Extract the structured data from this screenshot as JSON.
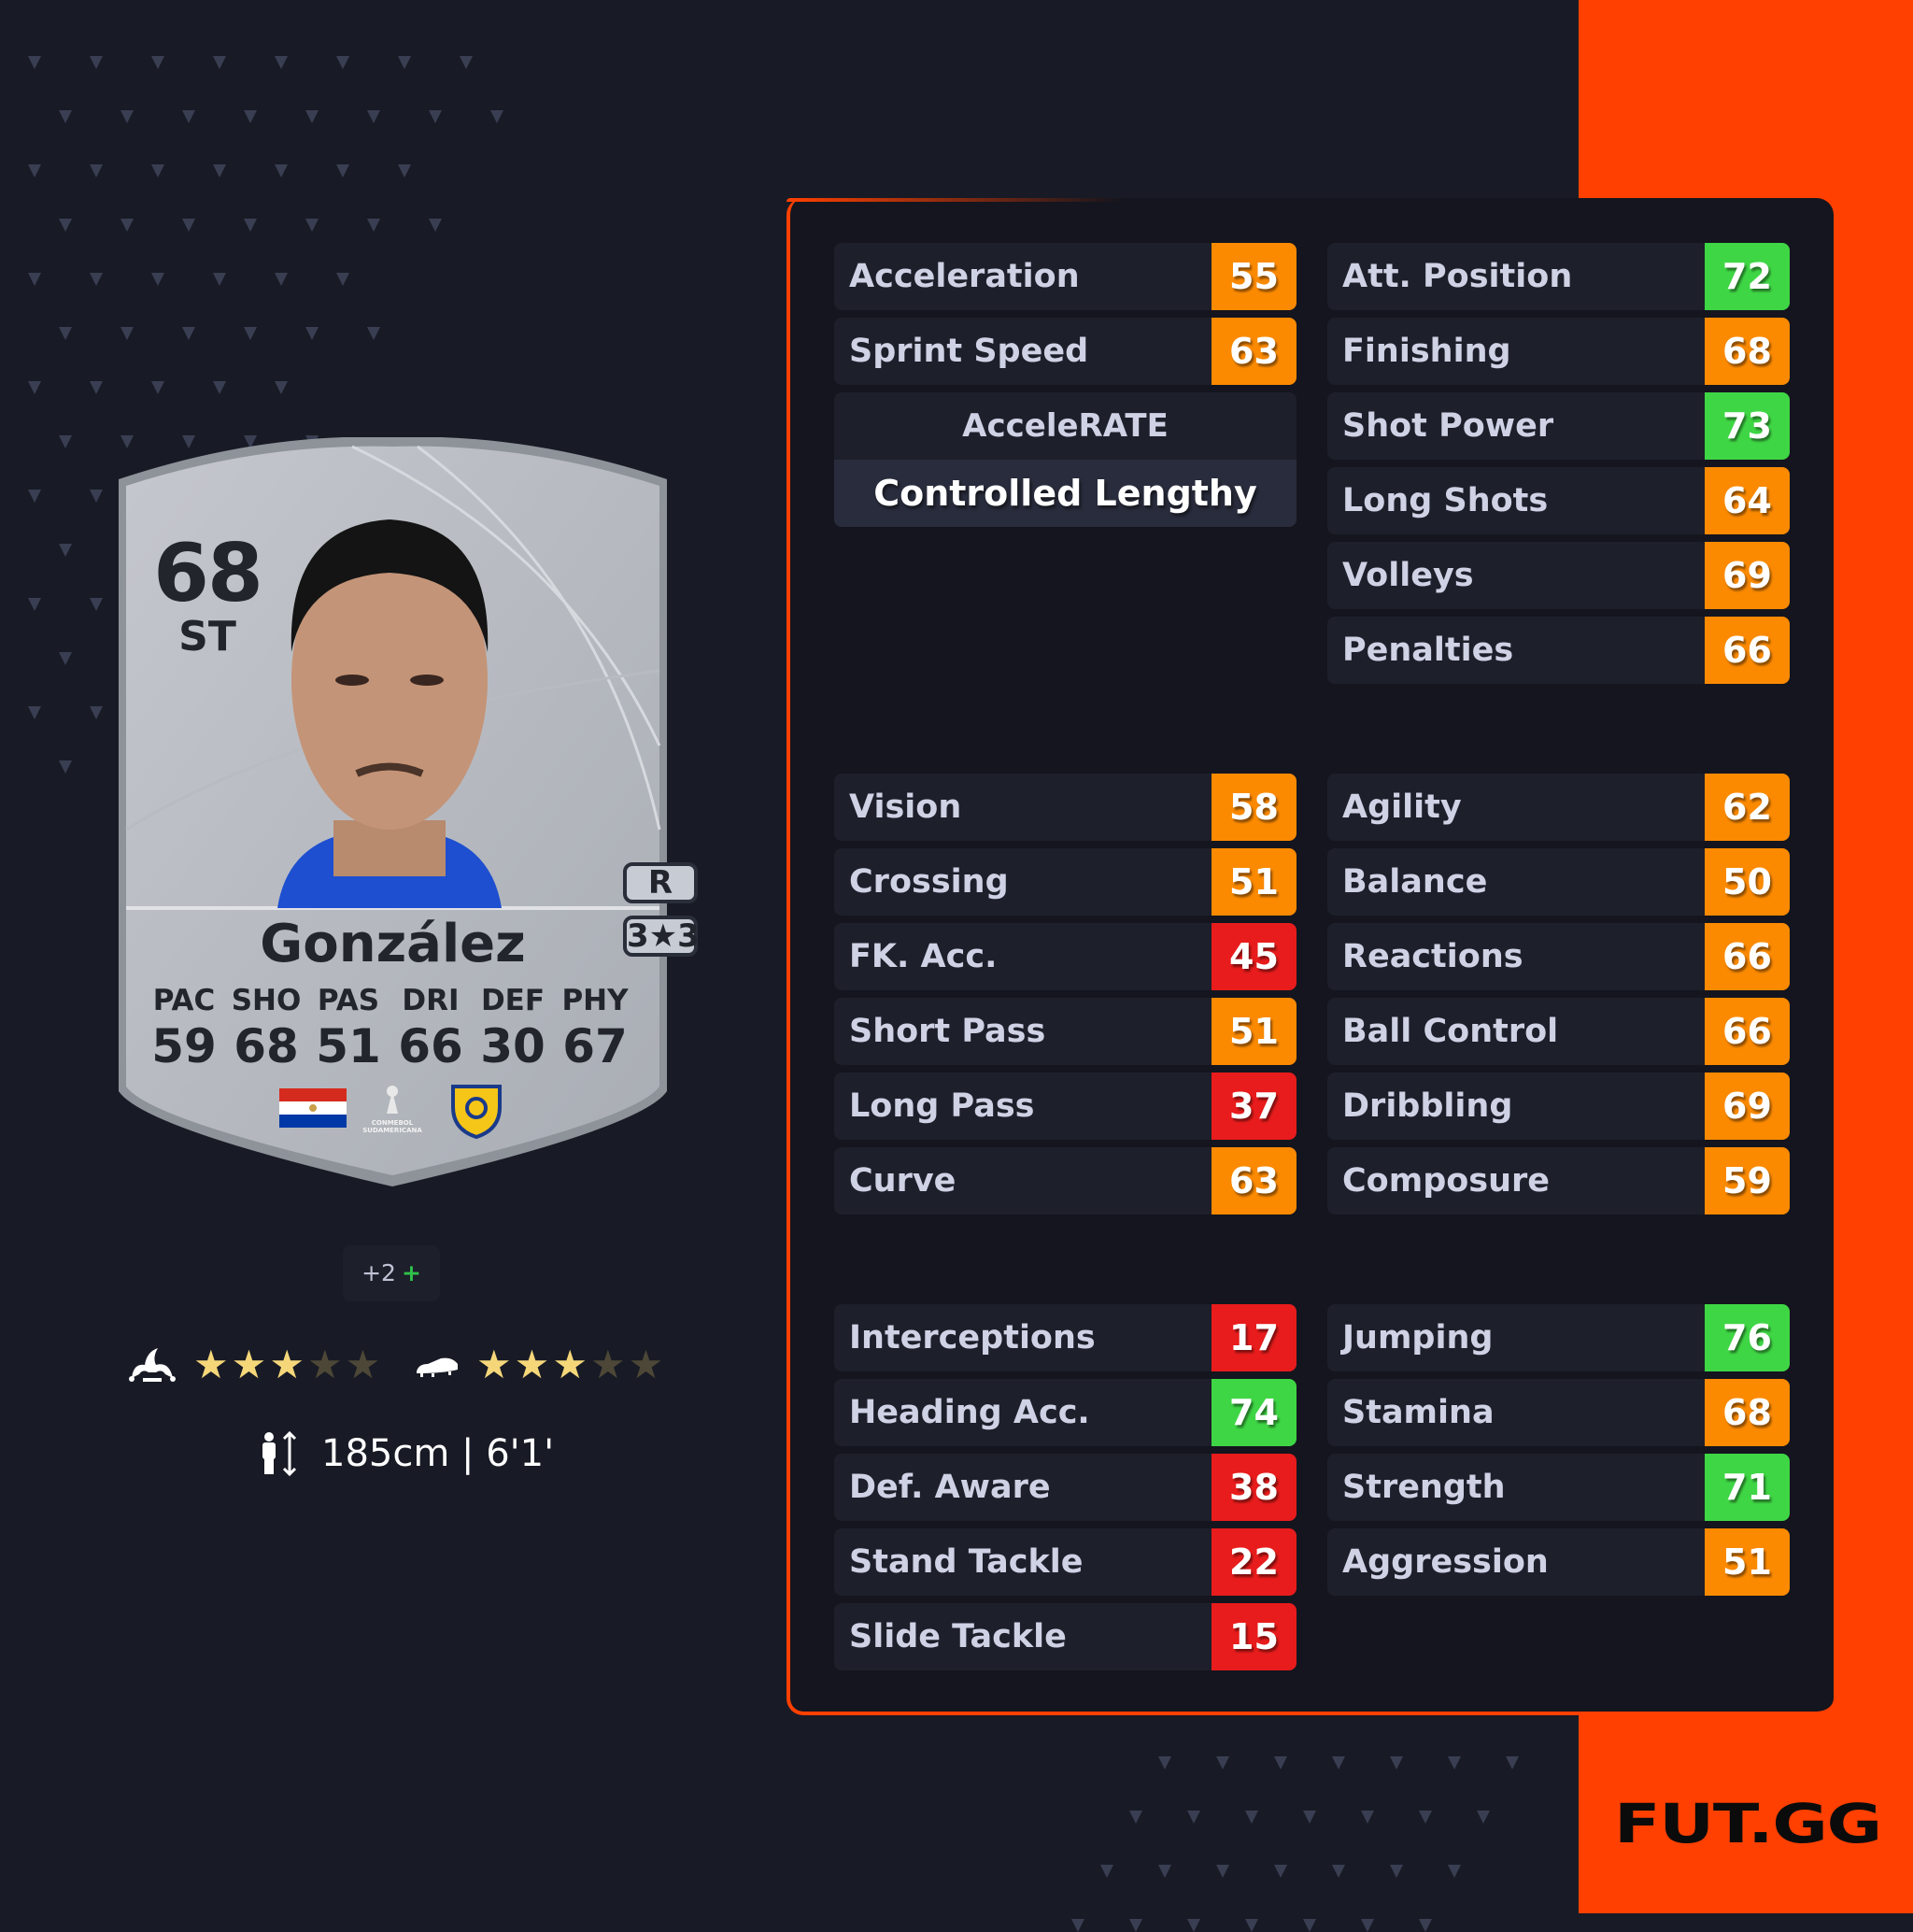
{
  "colors": {
    "brand": "#ff4000",
    "high": "#3fd645",
    "mid": "#fb8a00",
    "low": "#e81c1c"
  },
  "card": {
    "rating": "68",
    "position": "ST",
    "name": "González",
    "foot": "R",
    "skill_weak": "3★3",
    "skill_weak_parts": {
      "skill": "3",
      "weak": "3"
    },
    "stats": [
      {
        "k": "PAC",
        "v": "59"
      },
      {
        "k": "SHO",
        "v": "68"
      },
      {
        "k": "PAS",
        "v": "51"
      },
      {
        "k": "DRI",
        "v": "66"
      },
      {
        "k": "DEF",
        "v": "30"
      },
      {
        "k": "PHY",
        "v": "67"
      }
    ],
    "nation": "Paraguay-flag",
    "league": "CONMEBOL SUDAMERICANA",
    "club": "club-crest"
  },
  "chemistry": {
    "text": "+2",
    "plus": "+"
  },
  "skill_moves": {
    "icon": "jester-hat-icon",
    "stars": 3,
    "max": 5
  },
  "weak_foot": {
    "icon": "boot-icon",
    "stars": 3,
    "max": 5
  },
  "height": {
    "text": "185cm | 6'1'"
  },
  "playstyle": {
    "accelerate_label": "AcceleRATE",
    "accelerate_value": "Controlled Lengthy"
  },
  "attributes": {
    "pace": [
      {
        "label": "Acceleration",
        "value": 55,
        "level": "mid"
      },
      {
        "label": "Sprint Speed",
        "value": 63,
        "level": "mid"
      }
    ],
    "shooting": [
      {
        "label": "Att. Position",
        "value": 72,
        "level": "high"
      },
      {
        "label": "Finishing",
        "value": 68,
        "level": "mid"
      },
      {
        "label": "Shot Power",
        "value": 73,
        "level": "high"
      },
      {
        "label": "Long Shots",
        "value": 64,
        "level": "mid"
      },
      {
        "label": "Volleys",
        "value": 69,
        "level": "mid"
      },
      {
        "label": "Penalties",
        "value": 66,
        "level": "mid"
      }
    ],
    "passing": [
      {
        "label": "Vision",
        "value": 58,
        "level": "mid"
      },
      {
        "label": "Crossing",
        "value": 51,
        "level": "mid"
      },
      {
        "label": "FK. Acc.",
        "value": 45,
        "level": "low"
      },
      {
        "label": "Short Pass",
        "value": 51,
        "level": "mid"
      },
      {
        "label": "Long Pass",
        "value": 37,
        "level": "low"
      },
      {
        "label": "Curve",
        "value": 63,
        "level": "mid"
      }
    ],
    "dribbling": [
      {
        "label": "Agility",
        "value": 62,
        "level": "mid"
      },
      {
        "label": "Balance",
        "value": 50,
        "level": "mid"
      },
      {
        "label": "Reactions",
        "value": 66,
        "level": "mid"
      },
      {
        "label": "Ball Control",
        "value": 66,
        "level": "mid"
      },
      {
        "label": "Dribbling",
        "value": 69,
        "level": "mid"
      },
      {
        "label": "Composure",
        "value": 59,
        "level": "mid"
      }
    ],
    "defending": [
      {
        "label": "Interceptions",
        "value": 17,
        "level": "low"
      },
      {
        "label": "Heading Acc.",
        "value": 74,
        "level": "high"
      },
      {
        "label": "Def. Aware",
        "value": 38,
        "level": "low"
      },
      {
        "label": "Stand Tackle",
        "value": 22,
        "level": "low"
      },
      {
        "label": "Slide Tackle",
        "value": 15,
        "level": "low"
      }
    ],
    "physical": [
      {
        "label": "Jumping",
        "value": 76,
        "level": "high"
      },
      {
        "label": "Stamina",
        "value": 68,
        "level": "mid"
      },
      {
        "label": "Strength",
        "value": 71,
        "level": "high"
      },
      {
        "label": "Aggression",
        "value": 51,
        "level": "mid"
      }
    ]
  },
  "brand": {
    "logo": "FUT.GG"
  }
}
